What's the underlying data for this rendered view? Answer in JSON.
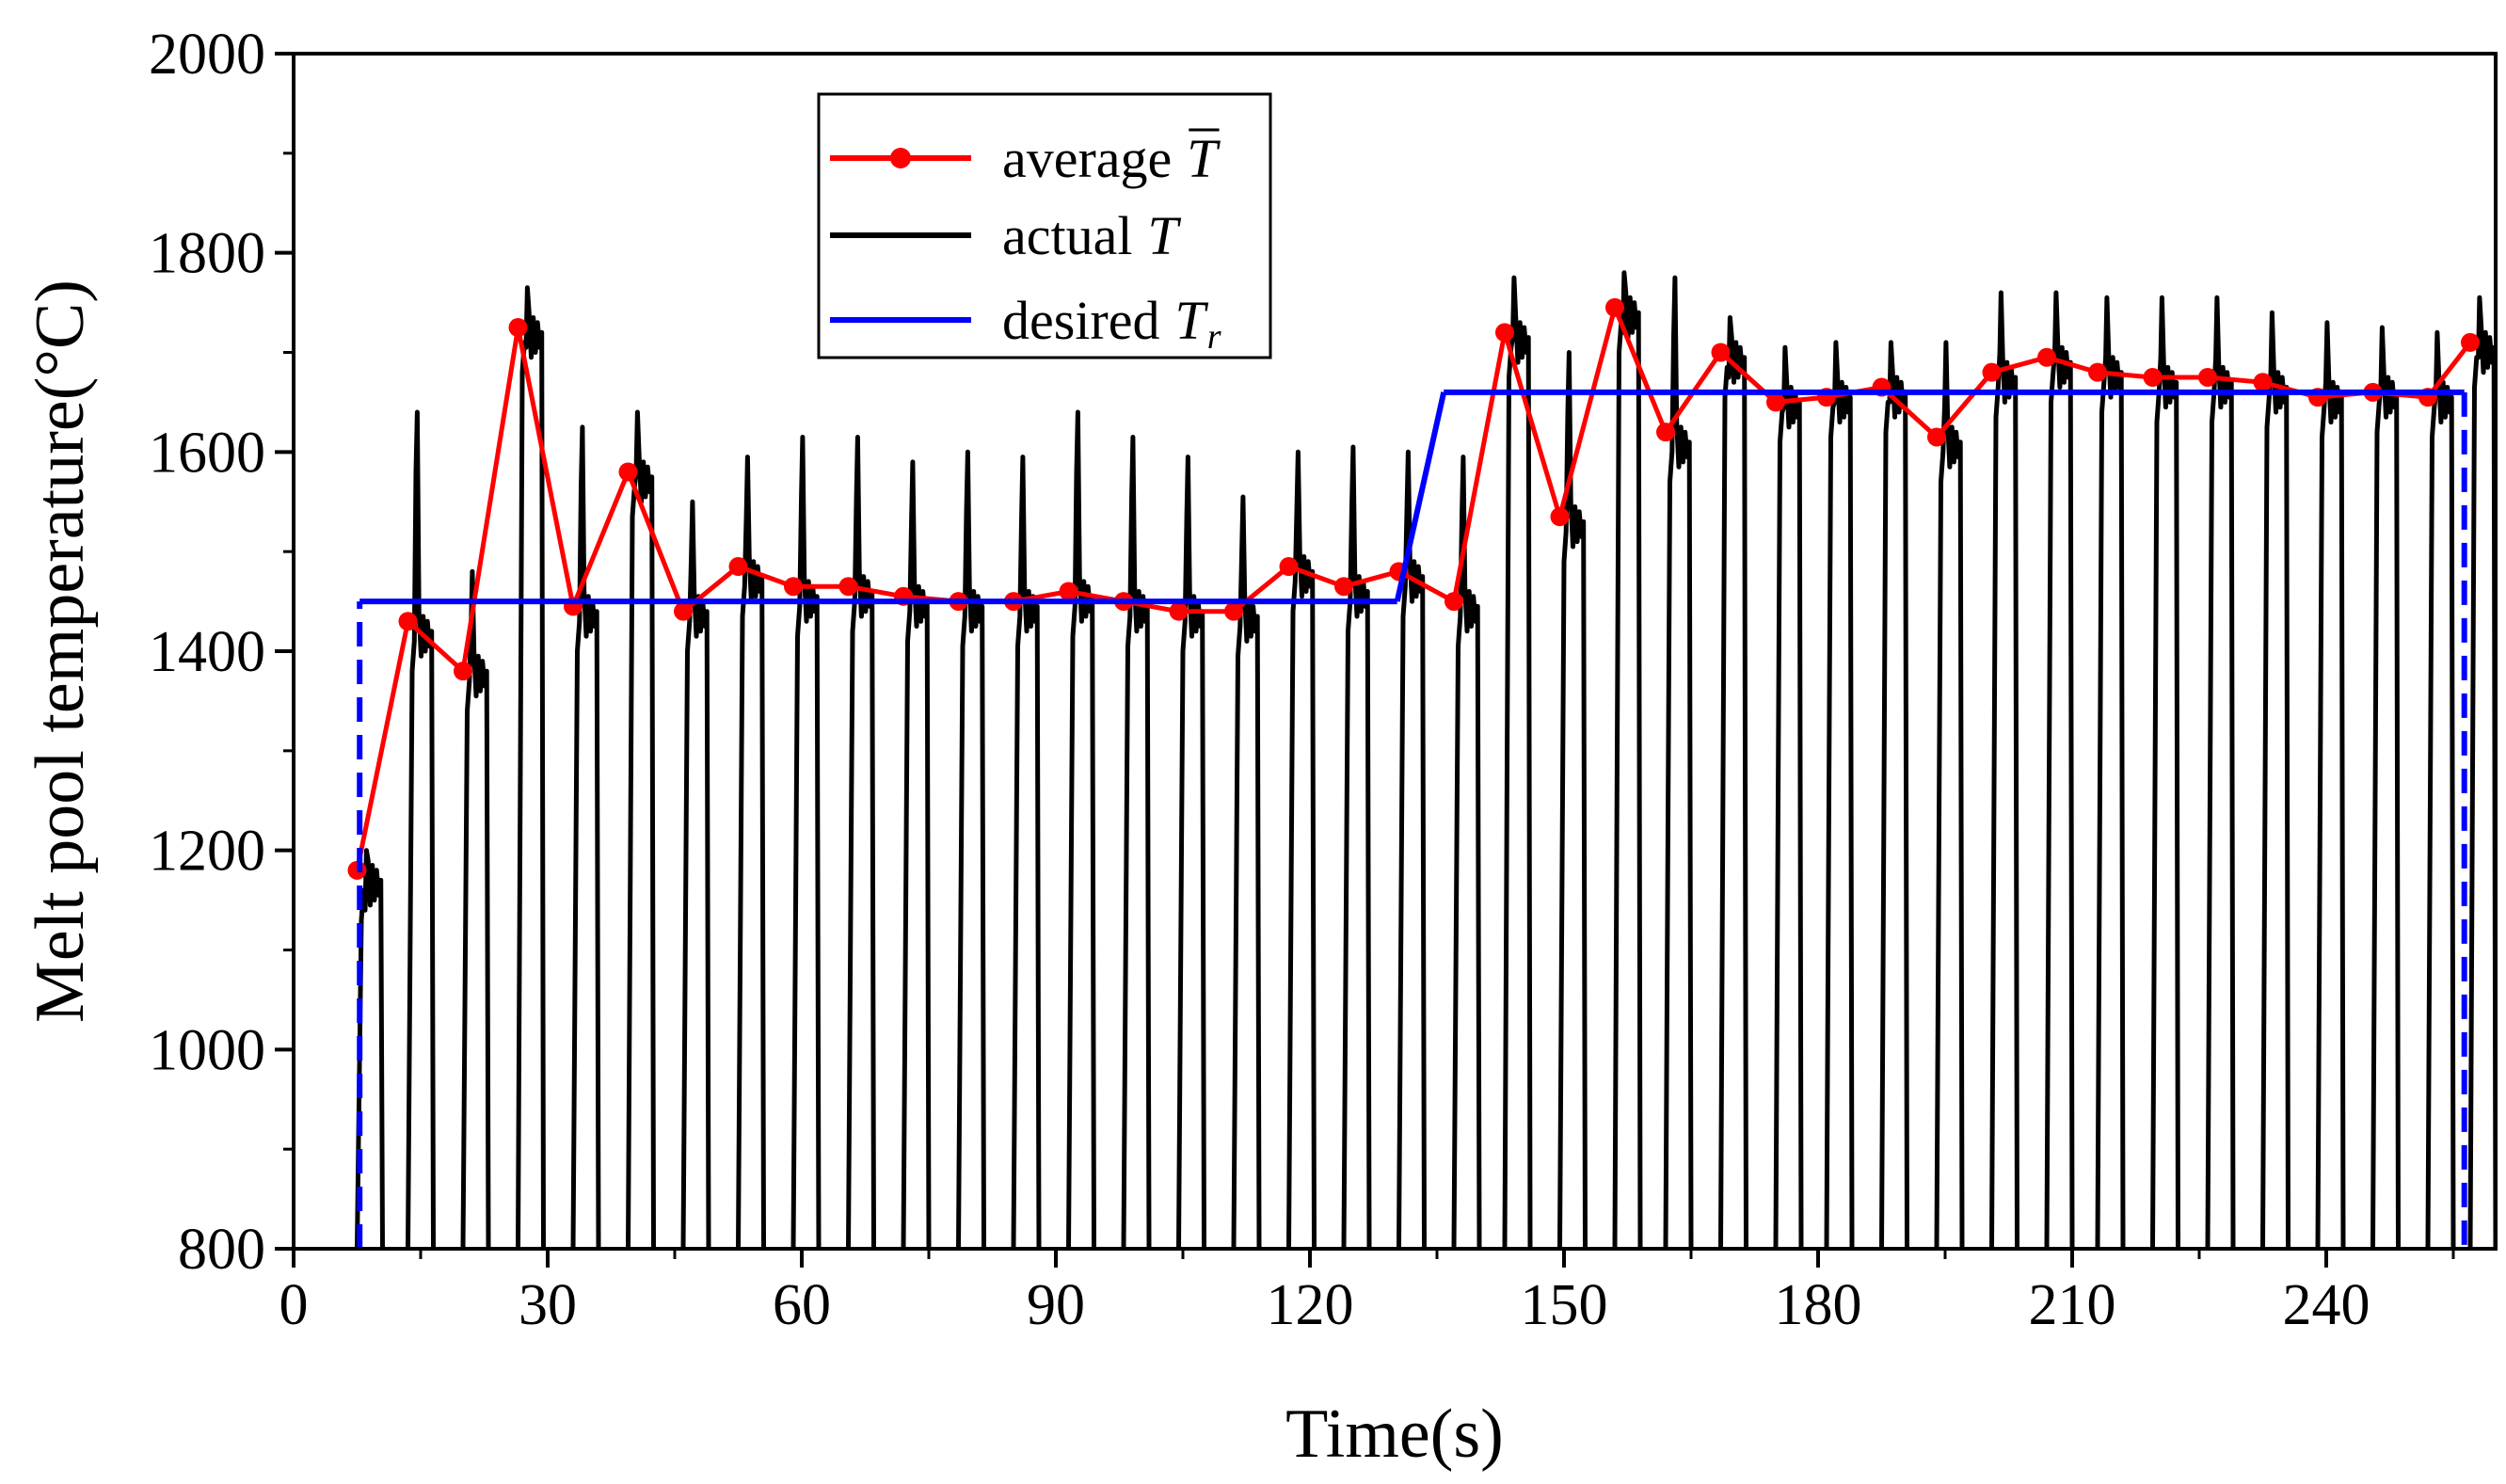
{
  "chart_data": {
    "type": "line",
    "title": "",
    "xlabel": "Time(s)",
    "ylabel": "Melt pool temperature(°C)",
    "xlim": [
      0,
      260
    ],
    "ylim": [
      800,
      2000
    ],
    "x_ticks": [
      0,
      30,
      60,
      90,
      120,
      150,
      180,
      210,
      240
    ],
    "x_tick_labels": [
      "0",
      "30",
      "60",
      "90",
      "120",
      "150",
      "180",
      "210",
      "240"
    ],
    "y_ticks": [
      800,
      1000,
      1200,
      1400,
      1600,
      1800,
      2000
    ],
    "y_tick_labels": [
      "800",
      "1000",
      "1200",
      "1400",
      "1600",
      "1800",
      "2000"
    ],
    "legend": {
      "position": "top-left",
      "entries": [
        {
          "label": "average",
          "symbol": "T",
          "overbar": true,
          "subscript": "",
          "series": "average"
        },
        {
          "label": "actual",
          "symbol": "T",
          "overbar": false,
          "subscript": "",
          "series": "actual"
        },
        {
          "label": "desired",
          "symbol": "T",
          "overbar": false,
          "subscript": "r",
          "series": "desired"
        }
      ]
    },
    "series": [
      {
        "name": "average",
        "color": "#ff0000",
        "marker": "circle",
        "x": [
          7.5,
          13.5,
          20,
          26.5,
          33,
          39.5,
          46,
          52.5,
          59,
          65.5,
          72,
          78.5,
          85,
          91.5,
          98,
          104.5,
          111,
          117.5,
          124,
          130.5,
          137,
          143,
          149.5,
          156,
          162,
          168.5,
          175,
          181,
          187.5,
          194,
          200.5,
          207,
          213,
          219.5,
          226,
          232.5,
          239,
          245.5,
          252,
          257
        ],
        "y": [
          1180,
          1430,
          1380,
          1725,
          1445,
          1580,
          1440,
          1485,
          1465,
          1465,
          1455,
          1450,
          1450,
          1460,
          1450,
          1440,
          1440,
          1485,
          1465,
          1480,
          1450,
          1720,
          1535,
          1745,
          1620,
          1700,
          1650,
          1655,
          1665,
          1615,
          1680,
          1695,
          1680,
          1675,
          1675,
          1670,
          1655,
          1660,
          1655,
          1710
        ]
      },
      {
        "name": "actual",
        "color": "#000000",
        "description": "pulsed melt pool temperature; one spike per layer",
        "layer_start_times": [
          7.5,
          13.5,
          20,
          26.5,
          33,
          39.5,
          46,
          52.5,
          59,
          65.5,
          72,
          78.5,
          85,
          91.5,
          98,
          104.5,
          111,
          117.5,
          124,
          130.5,
          137,
          143,
          149.5,
          156,
          162,
          168.5,
          175,
          181,
          187.5,
          194,
          200.5,
          207,
          213,
          219.5,
          226,
          232.5,
          239,
          245.5,
          252,
          257
        ],
        "layer_plateaus": [
          1170,
          1420,
          1380,
          1720,
          1440,
          1575,
          1440,
          1475,
          1455,
          1460,
          1450,
          1445,
          1445,
          1455,
          1445,
          1440,
          1435,
          1480,
          1460,
          1475,
          1445,
          1715,
          1530,
          1740,
          1610,
          1695,
          1650,
          1655,
          1660,
          1610,
          1675,
          1690,
          1680,
          1670,
          1670,
          1665,
          1655,
          1660,
          1655,
          1705
        ],
        "layer_peaks": [
          1200,
          1640,
          1480,
          1765,
          1625,
          1640,
          1550,
          1595,
          1615,
          1615,
          1590,
          1600,
          1595,
          1640,
          1615,
          1595,
          1555,
          1600,
          1605,
          1600,
          1595,
          1775,
          1700,
          1780,
          1775,
          1735,
          1705,
          1710,
          1710,
          1710,
          1760,
          1760,
          1755,
          1755,
          1755,
          1740,
          1730,
          1725,
          1720,
          1755
        ],
        "baseline": 800
      },
      {
        "name": "desired",
        "color": "#0000ff",
        "x": [
          7.8,
          7.8,
          130.3,
          135.8,
          256.3,
          256.3
        ],
        "y": [
          800,
          1450,
          1450,
          1660,
          1660,
          800
        ],
        "dashed_segments": [
          [
            0,
            1
          ],
          [
            4,
            5
          ]
        ]
      }
    ]
  }
}
